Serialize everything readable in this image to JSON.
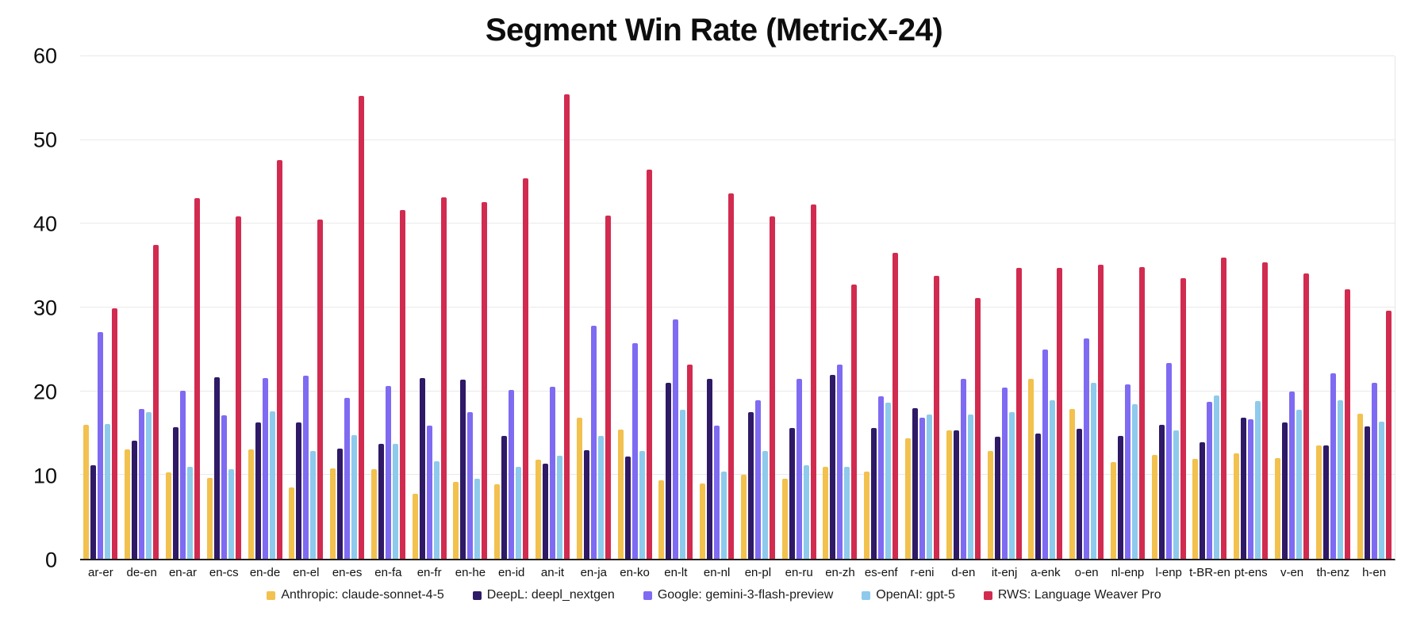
{
  "title": "Segment Win Rate (MetricX-24)",
  "chart_data": {
    "type": "bar",
    "title": "Segment Win Rate (MetricX-24)",
    "xlabel": "",
    "ylabel": "",
    "ylim": [
      0,
      60
    ],
    "yticks": [
      0,
      10,
      20,
      30,
      40,
      50,
      60
    ],
    "grid": true,
    "legend_position": "bottom",
    "categories": [
      "ar-er",
      "de-en",
      "en-ar",
      "en-cs",
      "en-de",
      "en-el",
      "en-es",
      "en-fa",
      "en-fr",
      "en-he",
      "en-id",
      "an-it",
      "en-ja",
      "en-ko",
      "en-lt",
      "en-nl",
      "en-pl",
      "en-ru",
      "en-zh",
      "es-enf",
      "r-eni",
      "d-en",
      "it-enj",
      "a-enk",
      "o-en",
      "nl-enp",
      "l-enp",
      "t-BR-en",
      "pt-ens",
      "v-en",
      "th-enz",
      "h-en"
    ],
    "series": [
      {
        "name": "Anthropic: claude-sonnet-4-5",
        "color": "#F2C14E",
        "values": [
          16.0,
          13.1,
          10.3,
          9.7,
          13.1,
          8.5,
          10.8,
          10.7,
          7.8,
          9.2,
          8.9,
          11.8,
          16.8,
          15.4,
          9.4,
          9.0,
          10.0,
          9.6,
          11.0,
          10.4,
          14.4,
          15.3,
          12.9,
          21.5,
          17.9,
          11.5,
          12.4,
          11.9,
          12.6,
          12.0,
          13.5,
          17.3
        ]
      },
      {
        "name": "DeepL: deepl_nextgen",
        "color": "#2E1A66",
        "values": [
          11.2,
          14.1,
          15.7,
          21.7,
          16.3,
          16.3,
          13.2,
          13.7,
          21.6,
          21.4,
          14.7,
          11.4,
          13.0,
          12.2,
          21.0,
          21.5,
          17.5,
          15.6,
          22.0,
          15.6,
          18.0,
          15.3,
          14.6,
          15.0,
          15.5,
          14.7,
          16.0,
          13.9,
          16.8,
          16.3,
          13.5,
          15.8
        ]
      },
      {
        "name": "Google: gemini-3-flash-preview",
        "color": "#7E6BF2",
        "values": [
          27.1,
          17.9,
          20.1,
          17.1,
          21.6,
          21.9,
          19.2,
          20.6,
          15.9,
          17.5,
          20.2,
          20.5,
          27.8,
          25.7,
          28.6,
          15.9,
          18.9,
          21.5,
          23.2,
          19.4,
          16.8,
          21.5,
          20.4,
          25.0,
          26.3,
          20.8,
          23.4,
          18.7,
          16.7,
          20.0,
          22.1,
          21.0
        ]
      },
      {
        "name": "OpenAI: gpt-5",
        "color": "#8ECAEC",
        "values": [
          16.1,
          17.5,
          11.0,
          10.7,
          17.6,
          12.9,
          14.8,
          13.7,
          11.6,
          9.6,
          11.0,
          12.3,
          14.7,
          12.9,
          17.8,
          10.4,
          12.9,
          11.2,
          11.0,
          18.6,
          17.2,
          17.2,
          17.5,
          18.9,
          21.0,
          18.5,
          15.3,
          19.5,
          18.8,
          17.8,
          18.9,
          16.4
        ]
      },
      {
        "name": "RWS: Language Weaver Pro",
        "color": "#D22B50",
        "values": [
          29.9,
          37.5,
          43.1,
          40.9,
          47.6,
          40.5,
          55.3,
          41.6,
          43.2,
          42.6,
          45.4,
          55.5,
          41.0,
          46.5,
          23.2,
          43.6,
          40.9,
          42.3,
          32.7,
          36.5,
          33.8,
          31.1,
          34.7,
          34.7,
          35.1,
          34.8,
          33.5,
          36.0,
          35.4,
          34.1,
          32.2,
          29.6
        ]
      }
    ]
  }
}
